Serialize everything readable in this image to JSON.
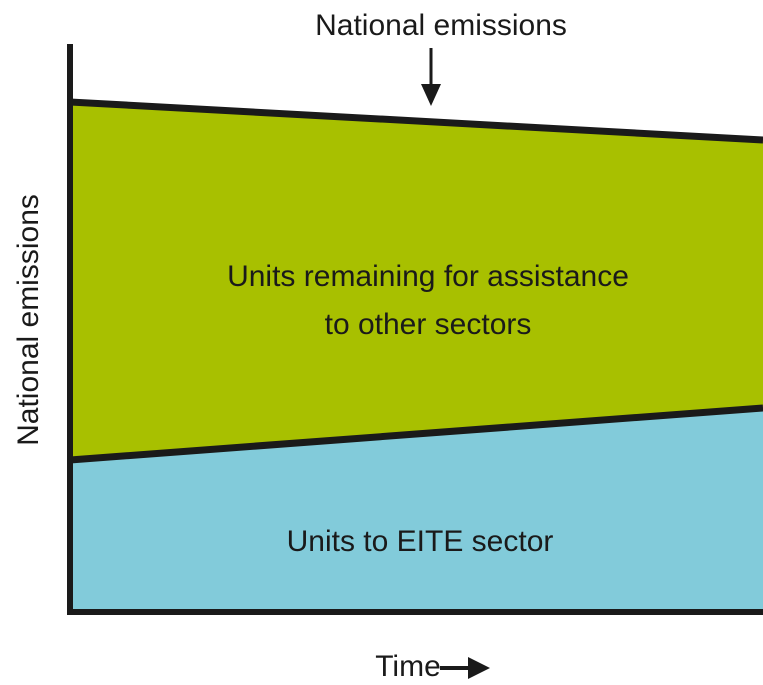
{
  "diagram": {
    "top_annotation": "National emissions",
    "y_axis_label": "National emissions",
    "x_axis_label": "Time",
    "regions": [
      {
        "label_lines": [
          "Units remaining for assistance",
          "to other sectors"
        ]
      },
      {
        "label_lines": [
          "Units to EITE sector"
        ]
      }
    ]
  }
}
